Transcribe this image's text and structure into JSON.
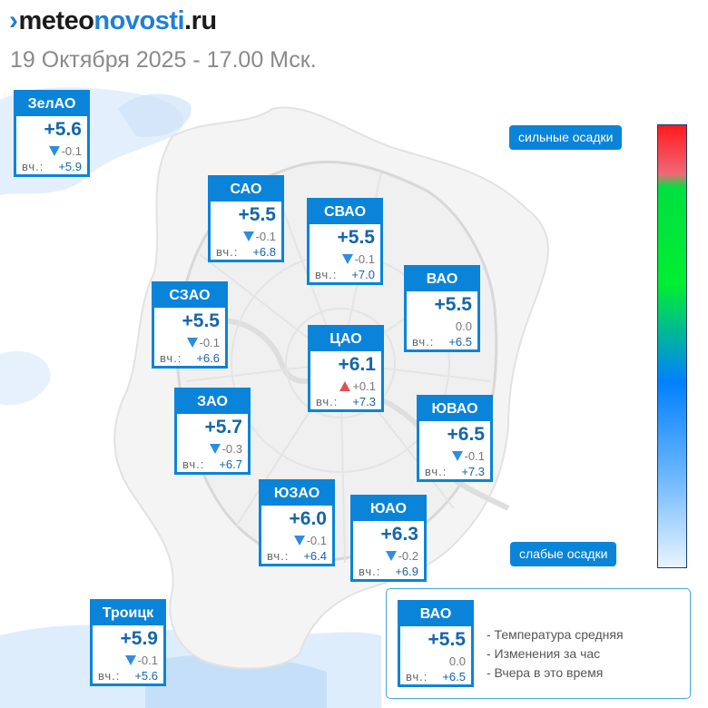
{
  "header": {
    "logo_mark": "›",
    "logo_meteo": "meteo",
    "logo_novosti": "novosti",
    "logo_ru": ".ru",
    "subtitle": "19 Октября 2025 - 17.00 Мск."
  },
  "yest_label": "вч.:",
  "districts": [
    {
      "id": "zelao",
      "name": "ЗелАО",
      "temp": "+5.6",
      "trend": "down",
      "change": "-0.1",
      "yesterday": "+5.9"
    },
    {
      "id": "sao",
      "name": "САО",
      "temp": "+5.5",
      "trend": "down",
      "change": "-0.1",
      "yesterday": "+6.8"
    },
    {
      "id": "svao",
      "name": "СВАО",
      "temp": "+5.5",
      "trend": "down",
      "change": "-0.1",
      "yesterday": "+7.0"
    },
    {
      "id": "vao",
      "name": "ВАО",
      "temp": "+5.5",
      "trend": "none",
      "change": "0.0",
      "yesterday": "+6.5"
    },
    {
      "id": "szao",
      "name": "СЗАО",
      "temp": "+5.5",
      "trend": "down",
      "change": "-0.1",
      "yesterday": "+6.6"
    },
    {
      "id": "cao",
      "name": "ЦАО",
      "temp": "+6.1",
      "trend": "up",
      "change": "+0.1",
      "yesterday": "+7.3"
    },
    {
      "id": "zao",
      "name": "ЗАО",
      "temp": "+5.7",
      "trend": "down",
      "change": "-0.3",
      "yesterday": "+6.7"
    },
    {
      "id": "yuvao",
      "name": "ЮВАО",
      "temp": "+6.5",
      "trend": "down",
      "change": "-0.1",
      "yesterday": "+7.3"
    },
    {
      "id": "yuzao",
      "name": "ЮЗАО",
      "temp": "+6.0",
      "trend": "down",
      "change": "-0.1",
      "yesterday": "+6.4"
    },
    {
      "id": "yuao",
      "name": "ЮАО",
      "temp": "+6.3",
      "trend": "down",
      "change": "-0.2",
      "yesterday": "+6.9"
    },
    {
      "id": "troitsk",
      "name": "Троицк",
      "temp": "+5.9",
      "trend": "down",
      "change": "-0.1",
      "yesterday": "+5.6"
    }
  ],
  "precip_scale": {
    "strong_label": "сильные осадки",
    "weak_label": "слабые осадки"
  },
  "legend": {
    "card": {
      "name": "ВАО",
      "temp": "+5.5",
      "trend": "none",
      "change": "0.0",
      "yesterday": "+6.5"
    },
    "line1": "- Температура средняя",
    "line2": "- Изменения за час",
    "line3": "- Вчера в это время"
  },
  "colors": {
    "accent": "#0a84d8",
    "temp_text": "#1565a8",
    "trend_down": "#2d8ee0",
    "trend_up": "#e0505a"
  }
}
